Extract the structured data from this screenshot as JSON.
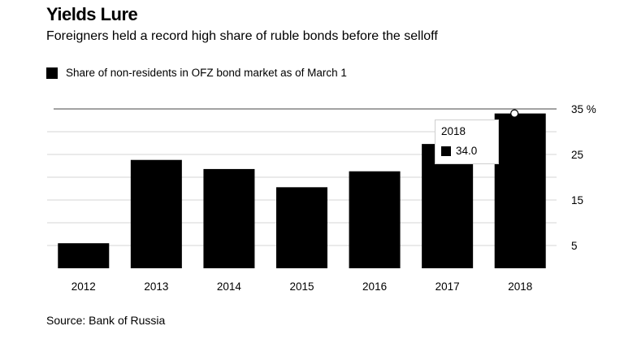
{
  "header": {
    "title": "Yields Lure",
    "subtitle": "Foreigners held a record high share of ruble bonds before the selloff"
  },
  "legend": {
    "label": "Share of non-residents in OFZ bond market as of March 1"
  },
  "source": "Source: Bank of Russia",
  "tooltip": {
    "year": "2018",
    "value": "34.0"
  },
  "colors": {
    "bar": "#000000",
    "grid": "#d6d6d6",
    "reference_line": "#444444",
    "text": "#000000"
  },
  "chart_data": {
    "type": "bar",
    "title": "Yields Lure",
    "subtitle": "Foreigners held a record high share of ruble bonds before the selloff",
    "xlabel": "",
    "ylabel": "",
    "categories": [
      "2012",
      "2013",
      "2014",
      "2015",
      "2016",
      "2017",
      "2018"
    ],
    "series": [
      {
        "name": "Share of non-residents in OFZ bond market as of March 1",
        "values": [
          5.5,
          23.8,
          21.8,
          17.8,
          21.3,
          27.3,
          34.0
        ]
      }
    ],
    "ylim": [
      0,
      35
    ],
    "yticks": [
      5,
      15,
      25,
      35
    ],
    "ytick_labels": [
      "5",
      "15",
      "25",
      "35 %"
    ],
    "grid": true,
    "legend_position": "top-left",
    "annotations": [
      {
        "category": "2018",
        "text": "34.0",
        "marker": "highlight"
      }
    ]
  }
}
